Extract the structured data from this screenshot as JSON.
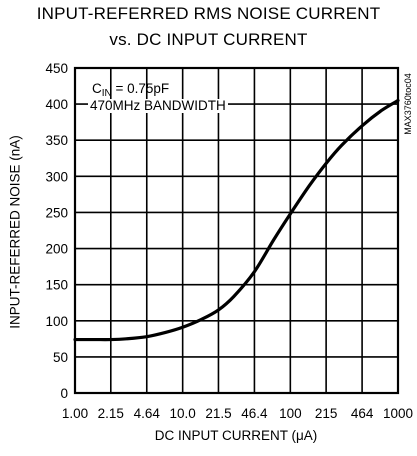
{
  "chart_data": {
    "type": "line",
    "title_lines": [
      "INPUT-REFERRED RMS NOISE CURRENT",
      "vs. DC INPUT CURRENT"
    ],
    "xlabel": "DC INPUT CURRENT (μA)",
    "ylabel": "INPUT-REFERRED NOISE (nA)",
    "x_scale": "log",
    "x_ticks": [
      "1.00",
      "2.15",
      "4.64",
      "10.0",
      "21.5",
      "46.4",
      "100",
      "215",
      "464",
      "1000"
    ],
    "x_tick_values": [
      1.0,
      2.15,
      4.64,
      10.0,
      21.5,
      46.4,
      100,
      215,
      464,
      1000
    ],
    "y_ticks": [
      "0",
      "50",
      "100",
      "150",
      "200",
      "250",
      "300",
      "350",
      "400",
      "450"
    ],
    "xlim": [
      1.0,
      1000
    ],
    "ylim": [
      0,
      450
    ],
    "grid": true,
    "annotations": {
      "cin_prefix": "C",
      "cin_sub": "IN",
      "cin_value": " = 0.75pF",
      "bandwidth": "470MHz BANDWIDTH"
    },
    "side_label": "MAX3760toc04",
    "series": [
      {
        "x": [
          1.0,
          1.5,
          2.15,
          3.0,
          4.64,
          7.0,
          10.0,
          15.0,
          21.5,
          30.0,
          46.4,
          70.0,
          100,
          150,
          215,
          300,
          464,
          700,
          1000
        ],
        "y": [
          74,
          74,
          74,
          75,
          78,
          84,
          91,
          102,
          115,
          134,
          168,
          212,
          248,
          287,
          318,
          343,
          370,
          391,
          405
        ]
      }
    ]
  }
}
